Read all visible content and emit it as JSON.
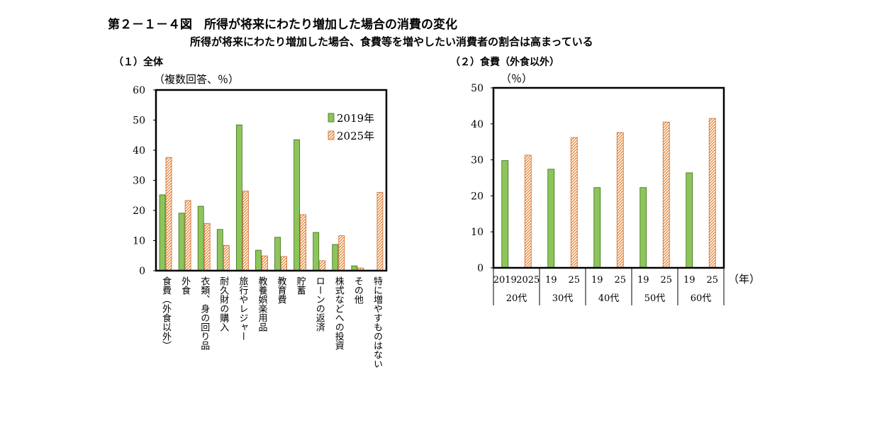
{
  "figure": {
    "title": "第２－１－４図　所得が将来にわたり増加した場合の消費の変化",
    "subtitle": "所得が将来にわたり増加した場合、食費等を増やしたい消費者の割合は高まっている"
  },
  "colors": {
    "series_2019": "#8dc55a",
    "series_2019_stroke": "#3d6b1e",
    "series_2025_hatch": "#e8822e",
    "series_2025_stroke": "#c8652a",
    "frame": "#000000"
  },
  "chart_data": [
    {
      "type": "bar",
      "panel_title": "（１）全体",
      "title": "",
      "ylabel": "（複数回答、％）",
      "xlabel": "",
      "ylim": [
        0,
        60
      ],
      "yticks": [
        "0",
        "10",
        "20",
        "30",
        "40",
        "50",
        "60"
      ],
      "grid": false,
      "legend_position": "top-right",
      "categories": [
        "食費（外食以外）",
        "外食",
        "衣類、身の回り品",
        "耐久財の購入",
        "旅行やレジャー",
        "教養娯楽用品",
        "教育費",
        "貯蓄",
        "ローンの返済",
        "株式などへの投資",
        "その他",
        "特に増やすものはない"
      ],
      "series": [
        {
          "name": "2019年",
          "values": [
            25.2,
            19.1,
            21.4,
            13.7,
            48.4,
            6.8,
            11.1,
            43.5,
            12.7,
            8.7,
            1.6,
            0
          ]
        },
        {
          "name": "2025年",
          "values": [
            37.6,
            23.3,
            15.7,
            8.4,
            26.4,
            4.9,
            4.7,
            18.6,
            3.3,
            11.6,
            0.9,
            26.0
          ]
        }
      ]
    },
    {
      "type": "bar",
      "panel_title": "（２）食費（外食以外）",
      "title": "",
      "ylabel": "（％）",
      "xlabel": "（年）",
      "ylim": [
        0,
        50
      ],
      "yticks": [
        "0",
        "10",
        "20",
        "30",
        "40",
        "50"
      ],
      "grid": false,
      "groups": [
        "20代",
        "30代",
        "40代",
        "50代",
        "60代"
      ],
      "x_tick_labels": [
        [
          "2019",
          "2025"
        ],
        [
          "19",
          "25"
        ],
        [
          "19",
          "25"
        ],
        [
          "19",
          "25"
        ],
        [
          "19",
          "25"
        ]
      ],
      "series": [
        {
          "year": "2019",
          "values": [
            29.8,
            27.4,
            22.3,
            22.3,
            26.4
          ]
        },
        {
          "year": "2025",
          "values": [
            31.3,
            36.2,
            37.6,
            40.5,
            41.5
          ]
        }
      ]
    }
  ]
}
